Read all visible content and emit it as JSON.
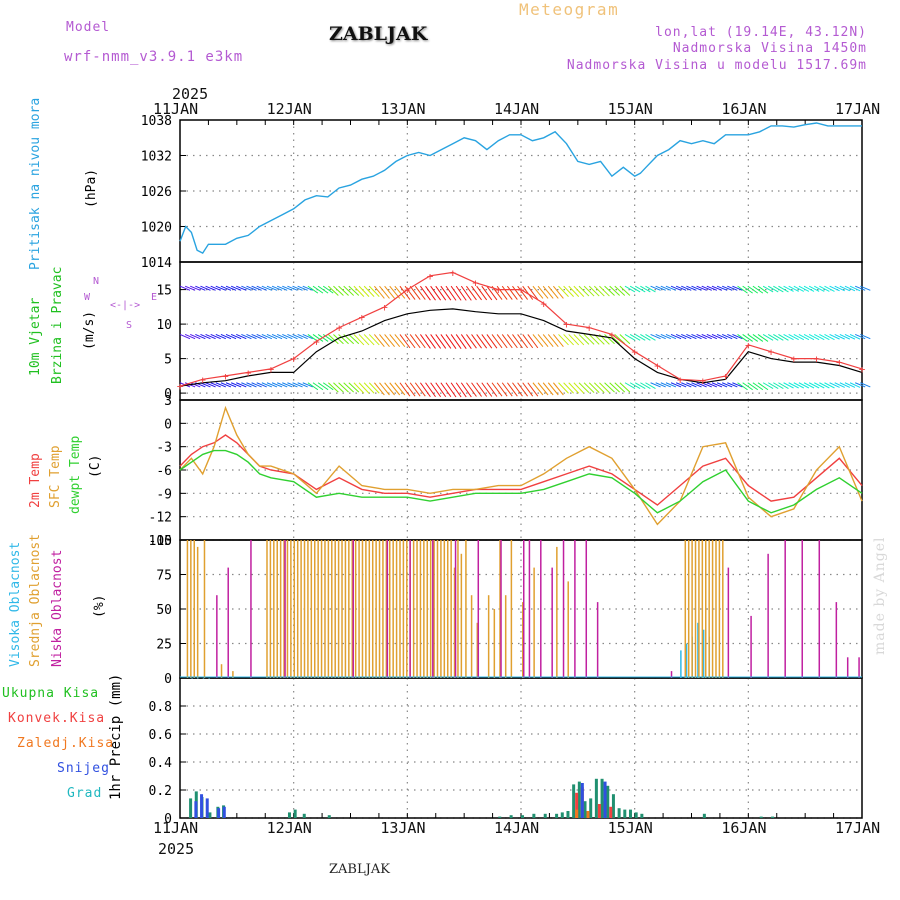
{
  "header": {
    "model_label": "Model",
    "model_name": "wrf-nmm_v3.9.1 e3km",
    "station": "ZABLJAK",
    "title": "Meteogram",
    "coords": "lon,lat (19.14E, 43.12N)",
    "altitude": "Nadmorska Visina 1450m",
    "model_altitude": "Nadmorska Visina u modelu 1517.69m",
    "footer_station": "ZABLJAK",
    "watermark": "made by Angel"
  },
  "time_axis": {
    "year": "2025",
    "labels": [
      "11JAN",
      "12JAN",
      "13JAN",
      "14JAN",
      "15JAN",
      "16JAN",
      "17JAN"
    ]
  },
  "colors": {
    "pressure": "#29a3e0",
    "temp2m": "#f04040",
    "sfc": "#e0a030",
    "dewpt": "#30d030",
    "high_cloud": "#30b8e8",
    "mid_cloud": "#e0a030",
    "low_cloud": "#c020a0",
    "wind_label": "#20c020"
  },
  "chart_data": [
    {
      "type": "line",
      "name": "Pritisak na nivou mora",
      "ylabel": "Pritisak na nivou mora",
      "unit": "(hPa)",
      "ylim": [
        1014,
        1038
      ],
      "yticks": [
        1014,
        1020,
        1026,
        1032,
        1038
      ],
      "x_days": [
        0,
        0.05,
        0.1,
        0.15,
        0.2,
        0.25,
        0.3,
        0.4,
        0.5,
        0.6,
        0.7,
        0.8,
        0.9,
        1.0,
        1.1,
        1.2,
        1.3,
        1.4,
        1.5,
        1.6,
        1.7,
        1.8,
        1.9,
        2.0,
        2.1,
        2.2,
        2.3,
        2.4,
        2.5,
        2.6,
        2.7,
        2.8,
        2.9,
        3.0,
        3.1,
        3.2,
        3.3,
        3.4,
        3.5,
        3.6,
        3.7,
        3.8,
        3.9,
        4.0,
        4.05,
        4.1,
        4.15,
        4.2,
        4.3,
        4.4,
        4.5,
        4.6,
        4.7,
        4.8,
        4.9,
        5.0,
        5.1,
        5.2,
        5.3,
        5.4,
        5.5,
        5.6,
        5.7,
        5.8,
        5.9,
        6.0
      ],
      "values": [
        1017.5,
        1020,
        1019,
        1016,
        1015.5,
        1017,
        1017,
        1017,
        1018,
        1018.5,
        1020,
        1021,
        1022,
        1023,
        1024.5,
        1025.2,
        1025,
        1026.5,
        1027,
        1028,
        1028.5,
        1029.5,
        1031,
        1032,
        1032.5,
        1032,
        1033,
        1034,
        1035,
        1034.5,
        1033,
        1034.5,
        1035.5,
        1035.5,
        1034.5,
        1035,
        1036,
        1034,
        1031,
        1030.5,
        1031,
        1028.5,
        1030,
        1028.5,
        1029,
        1030,
        1031,
        1032,
        1033,
        1034.5,
        1034,
        1034.5,
        1034,
        1035.5,
        1035.5,
        1035.5,
        1036,
        1037,
        1037,
        1036.8,
        1037.2,
        1037.5,
        1037,
        1037,
        1037,
        1037
      ]
    },
    {
      "type": "line",
      "name": "10m Vjetar Brzina i Pravac",
      "ylabel": "10m Vjetar Brzina i Pravac",
      "unit": "(m/s)",
      "ylim": [
        -1,
        19
      ],
      "yticks": [
        0,
        5,
        10,
        15
      ],
      "compass": [
        "N",
        "<",
        "-",
        "|",
        "-",
        ">",
        "S",
        "W",
        "E"
      ],
      "series": [
        {
          "name": "speed",
          "x_days": [
            0,
            0.2,
            0.4,
            0.6,
            0.8,
            1.0,
            1.2,
            1.4,
            1.6,
            1.8,
            2.0,
            2.2,
            2.4,
            2.6,
            2.8,
            3.0,
            3.2,
            3.4,
            3.6,
            3.8,
            4.0,
            4.2,
            4.4,
            4.6,
            4.8,
            5.0,
            5.2,
            5.4,
            5.6,
            5.8,
            6.0
          ],
          "values": [
            1,
            1.5,
            1.8,
            2.5,
            3,
            3,
            6,
            8,
            9,
            10.5,
            11.5,
            12,
            12.2,
            11.8,
            11.5,
            11.5,
            10.5,
            9,
            8.5,
            8,
            5,
            3,
            2,
            1.5,
            2,
            6,
            5,
            4.5,
            4.5,
            4,
            3
          ]
        },
        {
          "name": "gust",
          "x_days": [
            0,
            0.2,
            0.4,
            0.6,
            0.8,
            1.0,
            1.2,
            1.4,
            1.6,
            1.8,
            2.0,
            2.2,
            2.4,
            2.6,
            2.8,
            3.0,
            3.2,
            3.4,
            3.6,
            3.8,
            4.0,
            4.2,
            4.4,
            4.6,
            4.8,
            5.0,
            5.2,
            5.4,
            5.6,
            5.8,
            6.0
          ],
          "values": [
            1,
            2,
            2.5,
            3,
            3.5,
            5,
            7.5,
            9.5,
            11,
            12.5,
            15,
            17,
            17.5,
            16,
            15,
            15,
            13,
            10,
            9.5,
            8.5,
            6,
            4,
            2,
            1.8,
            2.5,
            7,
            6,
            5,
            5,
            4.5,
            3.5
          ]
        }
      ]
    },
    {
      "type": "line",
      "name": "Temperature",
      "ylabel": "2m Temp / SFC Temp / dewpt Temp",
      "unit": "(C)",
      "ylim": [
        -15,
        3
      ],
      "yticks": [
        -15,
        -12,
        -9,
        -6,
        -3,
        0,
        3
      ],
      "series": [
        {
          "name": "2m Temp",
          "x_days": [
            0,
            0.1,
            0.2,
            0.3,
            0.4,
            0.5,
            0.6,
            0.7,
            0.8,
            1.0,
            1.2,
            1.4,
            1.6,
            1.8,
            2.0,
            2.2,
            2.4,
            2.6,
            2.8,
            3.0,
            3.2,
            3.4,
            3.6,
            3.8,
            4.0,
            4.2,
            4.4,
            4.6,
            4.8,
            5.0,
            5.2,
            5.4,
            5.6,
            5.8,
            6.0
          ],
          "values": [
            -5.5,
            -4,
            -3,
            -2.5,
            -1.5,
            -2.5,
            -4,
            -5.5,
            -6,
            -6.5,
            -8.5,
            -7,
            -8.5,
            -9,
            -9,
            -9.5,
            -9,
            -8.5,
            -8.5,
            -8.5,
            -7.5,
            -6.5,
            -5.5,
            -6.5,
            -8.5,
            -10.5,
            -8,
            -5.5,
            -4.5,
            -8,
            -10,
            -9.5,
            -7,
            -4.5,
            -8
          ]
        },
        {
          "name": "SFC Temp",
          "x_days": [
            0,
            0.1,
            0.2,
            0.3,
            0.4,
            0.5,
            0.6,
            0.7,
            0.8,
            1.0,
            1.2,
            1.4,
            1.6,
            1.8,
            2.0,
            2.2,
            2.4,
            2.6,
            2.8,
            3.0,
            3.2,
            3.4,
            3.6,
            3.8,
            4.0,
            4.2,
            4.4,
            4.6,
            4.8,
            5.0,
            5.2,
            5.4,
            5.6,
            5.8,
            6.0
          ],
          "values": [
            -6,
            -4.5,
            -6.5,
            -3,
            2,
            -1.5,
            -4,
            -5.5,
            -5.5,
            -6.5,
            -9,
            -5.5,
            -8,
            -8.5,
            -8.5,
            -9,
            -8.5,
            -8.5,
            -8,
            -8,
            -6.5,
            -4.5,
            -3,
            -4.5,
            -8.5,
            -13,
            -10,
            -3,
            -2.5,
            -9.5,
            -12,
            -11,
            -6,
            -3,
            -10
          ]
        },
        {
          "name": "dewpt Temp",
          "x_days": [
            0,
            0.1,
            0.2,
            0.3,
            0.4,
            0.5,
            0.6,
            0.7,
            0.8,
            1.0,
            1.2,
            1.4,
            1.6,
            1.8,
            2.0,
            2.2,
            2.4,
            2.6,
            2.8,
            3.0,
            3.2,
            3.4,
            3.6,
            3.8,
            4.0,
            4.2,
            4.4,
            4.6,
            4.8,
            5.0,
            5.2,
            5.4,
            5.6,
            5.8,
            6.0
          ],
          "values": [
            -6,
            -5,
            -4,
            -3.5,
            -3.5,
            -4,
            -5,
            -6.5,
            -7,
            -7.5,
            -9.5,
            -9,
            -9.5,
            -9.5,
            -9.5,
            -10,
            -9.5,
            -9,
            -9,
            -9,
            -8.5,
            -7.5,
            -6.5,
            -7,
            -9,
            -11.5,
            -10,
            -7.5,
            -6,
            -10,
            -11.5,
            -10.5,
            -8.5,
            -7,
            -9
          ]
        }
      ]
    },
    {
      "type": "bar",
      "name": "Oblacnost",
      "ylabel": "Visoka Oblacnost / Srednja Oblacnost / Niska Oblacnost",
      "unit": "(%)",
      "ylim": [
        0,
        100
      ],
      "yticks": [
        0,
        25,
        50,
        75,
        100
      ],
      "series": [
        {
          "name": "Visoka Oblacnost",
          "x_days": [
            0.1,
            0.15,
            0.2,
            0.25,
            4.4,
            4.45,
            4.5,
            4.55,
            4.6,
            4.65
          ],
          "values": [
            0,
            0,
            0,
            0,
            20,
            25,
            30,
            40,
            35,
            30
          ]
        },
        {
          "name": "Srednja Oblacnost",
          "x_days": [
            0.05,
            0.08,
            0.11,
            0.14,
            0.2,
            0.35,
            0.45,
            0.75,
            0.78,
            0.81,
            0.84,
            0.87,
            0.9,
            0.93,
            0.96,
            0.99,
            1.02,
            1.05,
            1.08,
            1.11,
            1.14,
            1.17,
            1.2,
            1.23,
            1.26,
            1.29,
            1.32,
            1.35,
            1.38,
            1.41,
            1.44,
            1.47,
            1.5,
            1.53,
            1.56,
            1.59,
            1.62,
            1.65,
            1.68,
            1.71,
            1.74,
            1.77,
            1.8,
            1.83,
            1.86,
            1.89,
            1.92,
            1.95,
            1.98,
            2.01,
            2.04,
            2.07,
            2.1,
            2.13,
            2.16,
            2.19,
            2.22,
            2.25,
            2.28,
            2.31,
            2.34,
            2.37,
            2.4,
            2.43,
            2.46,
            2.5,
            2.55,
            2.6,
            2.7,
            2.75,
            2.8,
            2.85,
            2.9,
            3.0,
            3.1,
            3.3,
            3.4,
            4.43,
            4.46,
            4.49,
            4.52,
            4.55,
            4.58,
            4.61,
            4.64,
            4.67,
            4.7,
            4.73,
            4.76
          ],
          "values": [
            100,
            100,
            100,
            95,
            100,
            10,
            5,
            100,
            100,
            100,
            100,
            100,
            100,
            100,
            100,
            100,
            100,
            100,
            100,
            100,
            100,
            100,
            100,
            100,
            100,
            100,
            100,
            100,
            100,
            100,
            100,
            100,
            100,
            100,
            100,
            100,
            100,
            100,
            100,
            100,
            100,
            100,
            100,
            100,
            100,
            100,
            100,
            100,
            100,
            100,
            100,
            100,
            100,
            100,
            100,
            100,
            100,
            100,
            100,
            100,
            100,
            100,
            80,
            100,
            90,
            100,
            60,
            40,
            60,
            50,
            100,
            60,
            100,
            55,
            80,
            95,
            70,
            100,
            100,
            100,
            100,
            100,
            100,
            100,
            100,
            100,
            100,
            100,
            100
          ]
        },
        {
          "name": "Niska Oblacnost",
          "x_days": [
            0.3,
            0.4,
            0.6,
            0.9,
            1.5,
            1.8,
            2.0,
            2.2,
            2.4,
            2.6,
            2.8,
            3.0,
            3.05,
            3.15,
            3.25,
            3.35,
            3.45,
            3.55,
            3.65,
            4.3,
            4.8,
            5.0,
            5.15,
            5.3,
            5.45,
            5.6,
            5.75,
            5.85,
            5.95
          ],
          "values": [
            60,
            80,
            100,
            100,
            100,
            100,
            100,
            100,
            100,
            100,
            100,
            100,
            100,
            100,
            80,
            100,
            100,
            100,
            55,
            5,
            80,
            45,
            90,
            100,
            100,
            100,
            55,
            15,
            15
          ]
        }
      ]
    },
    {
      "type": "bar",
      "name": "1hr Precip",
      "ylabel": "1hr Precip",
      "unit": "(mm)",
      "ylim": [
        0,
        1.0
      ],
      "yticks": [
        0,
        0.2,
        0.4,
        0.6,
        0.8
      ],
      "legend": [
        "Ukupna Kisa",
        "Konvek.Kisa",
        "Zaledj.Kisa",
        "Snijeg",
        "Grad"
      ],
      "series": [
        {
          "name": "Ukupna Kisa",
          "x_days": [
            0.08,
            0.13,
            0.18,
            0.25,
            0.32,
            0.37,
            0.95,
            1.0,
            1.08,
            1.3,
            2.8,
            2.9,
            3.0,
            3.1,
            3.2,
            3.3,
            3.35,
            3.4,
            3.45,
            3.5,
            3.55,
            3.6,
            3.65,
            3.7,
            3.75,
            3.8,
            3.85,
            3.9,
            3.95,
            4.0,
            4.05,
            4.6,
            5.1,
            5.2
          ],
          "values": [
            0.14,
            0.19,
            0.15,
            0.04,
            0.08,
            0.09,
            0.04,
            0.06,
            0.03,
            0.02,
            0.01,
            0.02,
            0.02,
            0.03,
            0.03,
            0.03,
            0.04,
            0.05,
            0.24,
            0.26,
            0.12,
            0.14,
            0.28,
            0.28,
            0.23,
            0.17,
            0.07,
            0.06,
            0.06,
            0.04,
            0.03,
            0.03,
            0.01,
            0.01
          ]
        },
        {
          "name": "Konvek.Kisa",
          "x_days": [
            3.45,
            3.5,
            3.65,
            3.7,
            3.75
          ],
          "values": [
            0.18,
            0.22,
            0.1,
            0.12,
            0.08
          ]
        },
        {
          "name": "Zaledj.Kisa",
          "x_days": [
            3.45,
            3.55,
            3.7
          ],
          "values": [
            0.06,
            0.05,
            0.04
          ]
        },
        {
          "name": "Snijeg",
          "x_days": [
            0.1,
            0.15,
            0.2,
            0.3,
            0.35,
            3.5,
            3.7
          ],
          "values": [
            0.12,
            0.17,
            0.14,
            0.07,
            0.08,
            0.25,
            0.26
          ]
        },
        {
          "name": "Grad",
          "x_days": [],
          "values": []
        }
      ]
    }
  ]
}
